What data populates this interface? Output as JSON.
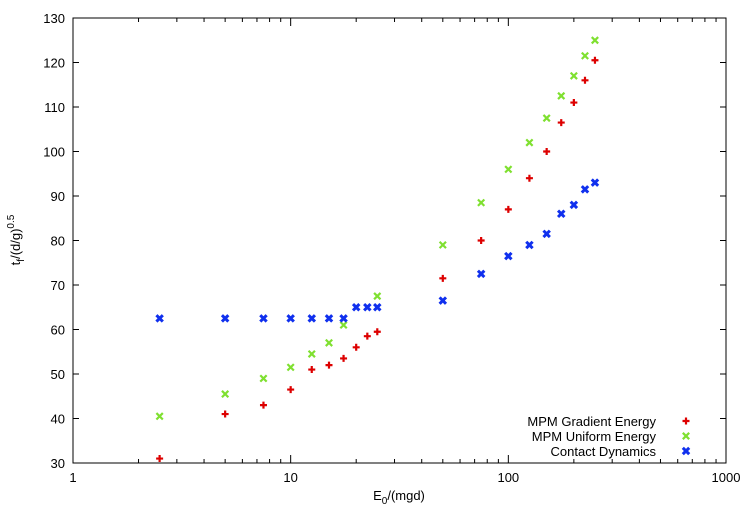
{
  "chart_data": {
    "type": "scatter",
    "title": "",
    "xlabel": {
      "main": "E",
      "sub": "0",
      "rest": "/(mgd)"
    },
    "ylabel": {
      "t": "t",
      "sub": "f",
      "mid": "/(d/g)",
      "sup": "0.5"
    },
    "xscale": "log",
    "xlim": [
      1,
      1000
    ],
    "ylim": [
      30,
      130
    ],
    "xticks": [
      1,
      10,
      100,
      1000
    ],
    "xtick_labels": [
      "1",
      "10",
      "100",
      "1000"
    ],
    "yticks": [
      30,
      40,
      50,
      60,
      70,
      80,
      90,
      100,
      110,
      120,
      130
    ],
    "ytick_labels": [
      "30",
      "40",
      "50",
      "60",
      "70",
      "80",
      "90",
      "100",
      "110",
      "120",
      "130"
    ],
    "grid": false,
    "legend_position": "bottom-right",
    "series": [
      {
        "name": "MPM Gradient Energy",
        "color": "#dd0000",
        "marker": "plus",
        "x": [
          2.5,
          5,
          7.5,
          10,
          12.5,
          15,
          17.5,
          20,
          22.5,
          25,
          50,
          75,
          100,
          125,
          150,
          175,
          200,
          225,
          250
        ],
        "y": [
          31,
          41,
          43,
          46.5,
          51,
          52,
          53.5,
          56,
          58.5,
          59.5,
          71.5,
          80,
          87,
          94,
          100,
          106.5,
          111,
          116,
          120.5
        ]
      },
      {
        "name": "MPM Uniform Energy",
        "color": "#7fe030",
        "marker": "x",
        "x": [
          2.5,
          5,
          7.5,
          10,
          12.5,
          15,
          17.5,
          25,
          50,
          75,
          100,
          125,
          150,
          175,
          200,
          225,
          250
        ],
        "y": [
          40.5,
          45.5,
          49,
          51.5,
          54.5,
          57,
          61,
          67.5,
          79,
          88.5,
          96,
          102,
          107.5,
          112.5,
          117,
          121.5,
          125
        ]
      },
      {
        "name": "Contact Dynamics",
        "color": "#1030ee",
        "marker": "x-bold",
        "x": [
          2.5,
          5,
          7.5,
          10,
          12.5,
          15,
          17.5,
          20,
          22.5,
          25,
          50,
          75,
          100,
          125,
          150,
          175,
          200,
          225,
          250
        ],
        "y": [
          62.5,
          62.5,
          62.5,
          62.5,
          62.5,
          62.5,
          62.5,
          65,
          65,
          65,
          66.5,
          72.5,
          76.5,
          79,
          81.5,
          86,
          88,
          91.5,
          93
        ]
      }
    ]
  }
}
